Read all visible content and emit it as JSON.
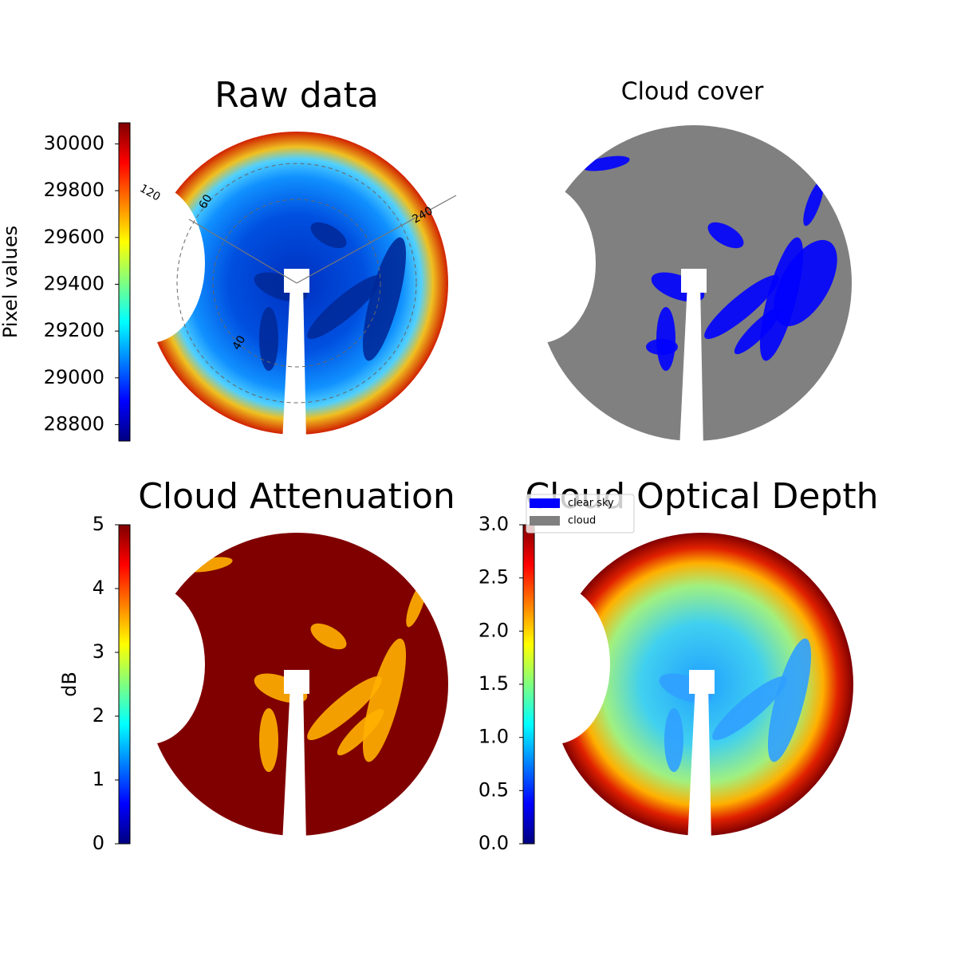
{
  "chart_data": [
    {
      "type": "heatmap",
      "title": "Raw data",
      "colorbar_label": "Pixel values",
      "colormap": "jet",
      "clim": [
        28730,
        30090
      ],
      "cticks": [
        28800,
        29000,
        29200,
        29400,
        29600,
        29800,
        30000
      ],
      "annotations": [
        "120",
        "240",
        "60",
        "40"
      ]
    },
    {
      "type": "mask",
      "title": "Cloud cover",
      "series": [
        {
          "name": "clear sky",
          "color": "#0000ff"
        },
        {
          "name": "cloud",
          "color": "#808080"
        }
      ]
    },
    {
      "type": "heatmap",
      "title": "Cloud Attenuation",
      "colorbar_label": "dB",
      "colormap": "jet",
      "clim": [
        0,
        5
      ],
      "cticks": [
        0,
        1,
        2,
        3,
        4,
        5
      ]
    },
    {
      "type": "heatmap",
      "title": "Cloud Optical Depth",
      "colormap": "jet",
      "clim": [
        0,
        3
      ],
      "cticks": [
        {
          "value": 0,
          "label": "0.0"
        },
        0.5,
        {
          "value": 1,
          "label": "1.0"
        },
        1.5,
        {
          "value": 2,
          "label": "2.0"
        },
        2.5,
        {
          "value": 3,
          "label": "3.0"
        }
      ]
    }
  ]
}
